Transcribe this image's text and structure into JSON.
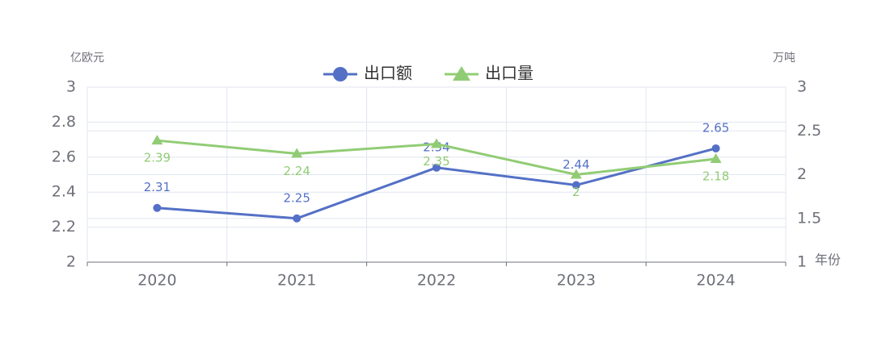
{
  "chart_data": {
    "type": "line",
    "y_label": "亿欧元",
    "y2_label": "万吨",
    "x_label": "年份",
    "categories": [
      "2020",
      "2021",
      "2022",
      "2023",
      "2024"
    ],
    "series": [
      {
        "name": "出口额",
        "color": "#5470c6",
        "marker": "circle",
        "label_position": "top",
        "values": [
          2.31,
          2.25,
          2.54,
          2.44,
          2.65
        ]
      },
      {
        "name": "出口量",
        "color": "#91cc75",
        "marker": "triangle",
        "label_position": "bottom",
        "axis": "y2",
        "values": [
          2.39,
          2.24,
          2.35,
          2,
          2.18
        ]
      }
    ],
    "ylim": [
      2,
      3
    ],
    "yticks": [
      2,
      2.2,
      2.4,
      2.6,
      2.8,
      3
    ],
    "y2lim": [
      1,
      3
    ],
    "y2ticks": [
      1,
      1.5,
      2,
      2.5,
      3
    ],
    "grid": true,
    "legend": "top"
  }
}
